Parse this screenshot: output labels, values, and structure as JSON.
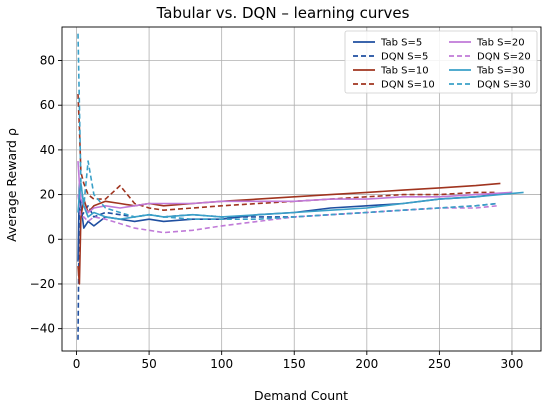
{
  "chart_data": {
    "type": "line",
    "title": "Tabular vs. DQN – learning curves",
    "xlabel": "Demand Count",
    "ylabel": "Average Reward ρ",
    "xlim": [
      -10,
      320
    ],
    "ylim": [
      -50,
      95
    ],
    "xticks": [
      0,
      50,
      100,
      150,
      200,
      250,
      300
    ],
    "yticks": [
      -40,
      -20,
      0,
      20,
      40,
      60,
      80
    ],
    "grid": true,
    "legend": {
      "placement": "top-right",
      "columns": 2
    },
    "series": [
      {
        "name": "Tab S=5",
        "color": "#1f4fa0",
        "dash": "solid",
        "x": [
          1,
          2,
          3,
          5,
          8,
          12,
          20,
          30,
          40,
          50,
          60,
          80,
          100,
          125,
          150,
          175,
          200,
          225,
          250,
          275,
          300
        ],
        "y": [
          -10,
          25,
          15,
          5,
          8,
          6,
          10,
          9,
          8,
          9,
          8,
          9,
          9,
          11,
          12,
          14,
          15,
          16,
          18,
          19,
          21
        ]
      },
      {
        "name": "DQN S=5",
        "color": "#1f4fa0",
        "dash": "dashed",
        "x": [
          1,
          2,
          3,
          5,
          8,
          12,
          20,
          30,
          40,
          50,
          60,
          80,
          100,
          125,
          150,
          175,
          200,
          225,
          250,
          275,
          290
        ],
        "y": [
          -45,
          20,
          10,
          12,
          15,
          10,
          12,
          11,
          10,
          11,
          10,
          11,
          10,
          10,
          10,
          11,
          12,
          13,
          14,
          15,
          16
        ]
      },
      {
        "name": "Tab S=10",
        "color": "#a0341f",
        "dash": "solid",
        "x": [
          1,
          2,
          3,
          5,
          8,
          12,
          20,
          30,
          40,
          50,
          60,
          80,
          100,
          125,
          150,
          175,
          200,
          225,
          250,
          275,
          292
        ],
        "y": [
          -12,
          -20,
          10,
          18,
          12,
          15,
          17,
          16,
          15,
          16,
          15,
          16,
          17,
          18,
          19,
          20,
          21,
          22,
          23,
          24,
          25
        ]
      },
      {
        "name": "DQN S=10",
        "color": "#a0341f",
        "dash": "dashed",
        "x": [
          1,
          2,
          3,
          5,
          8,
          12,
          20,
          30,
          40,
          50,
          60,
          80,
          100,
          125,
          150,
          175,
          200,
          225,
          250,
          275,
          290
        ],
        "y": [
          65,
          50,
          30,
          25,
          20,
          18,
          18,
          24,
          16,
          14,
          13,
          14,
          15,
          16,
          17,
          18,
          19,
          20,
          20,
          21,
          21
        ]
      },
      {
        "name": "Tab S=20",
        "color": "#c07ad8",
        "dash": "solid",
        "x": [
          1,
          2,
          3,
          5,
          8,
          12,
          20,
          30,
          40,
          50,
          60,
          80,
          100,
          125,
          150,
          175,
          200,
          225,
          250,
          275,
          300
        ],
        "y": [
          35,
          25,
          18,
          15,
          12,
          14,
          15,
          14,
          15,
          16,
          16,
          16,
          17,
          17,
          17,
          18,
          18,
          19,
          19,
          20,
          21
        ]
      },
      {
        "name": "DQN S=20",
        "color": "#c07ad8",
        "dash": "dashed",
        "x": [
          1,
          2,
          3,
          5,
          8,
          12,
          20,
          30,
          40,
          50,
          60,
          80,
          100,
          125,
          150,
          175,
          200,
          225,
          250,
          275,
          290
        ],
        "y": [
          20,
          15,
          10,
          10,
          8,
          10,
          9,
          7,
          5,
          4,
          3,
          4,
          6,
          8,
          10,
          11,
          12,
          13,
          14,
          14,
          15
        ]
      },
      {
        "name": "Tab S=30",
        "color": "#3aa0c8",
        "dash": "solid",
        "x": [
          1,
          2,
          3,
          5,
          8,
          12,
          20,
          30,
          40,
          50,
          60,
          80,
          100,
          125,
          150,
          175,
          200,
          225,
          250,
          275,
          308
        ],
        "y": [
          12,
          20,
          25,
          15,
          10,
          12,
          10,
          9,
          10,
          11,
          10,
          11,
          10,
          11,
          12,
          13,
          14,
          16,
          18,
          19,
          21
        ]
      },
      {
        "name": "DQN S=30",
        "color": "#3aa0c8",
        "dash": "dashed",
        "x": [
          1,
          2,
          3,
          5,
          8,
          12,
          20,
          30,
          40,
          50,
          60,
          80,
          100,
          125,
          150,
          175,
          200,
          225,
          250,
          275,
          290
        ],
        "y": [
          92,
          60,
          25,
          15,
          35,
          20,
          14,
          12,
          10,
          11,
          10,
          9,
          9,
          9,
          10,
          11,
          12,
          13,
          14,
          15,
          16
        ]
      }
    ]
  }
}
